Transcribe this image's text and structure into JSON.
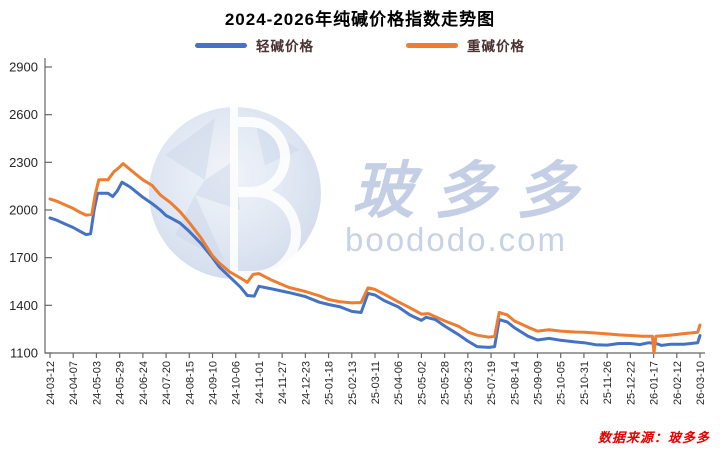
{
  "chart_data": {
    "type": "line",
    "title": "2024-2026年纯碱价格指数走势图",
    "xlabel": "",
    "ylabel": "",
    "ylim": [
      1100,
      2900
    ],
    "y_ticks": [
      1100,
      1400,
      1700,
      2000,
      2300,
      2600,
      2900
    ],
    "grid": false,
    "legend_position": "top",
    "x_tick_labels": [
      "24-03-12",
      "24-04-07",
      "24-05-03",
      "24-05-29",
      "24-06-24",
      "24-07-20",
      "24-08-15",
      "24-09-10",
      "24-10-06",
      "24-11-01",
      "24-11-27",
      "24-12-23",
      "25-01-18",
      "25-02-13",
      "25-03-11",
      "25-04-06",
      "25-05-02",
      "25-05-28",
      "25-06-23",
      "25-07-19",
      "25-08-14",
      "25-09-09",
      "25-10-05",
      "25-10-31",
      "25-11-26",
      "25-12-22",
      "26-01-17",
      "26-02-12",
      "26-03-10"
    ],
    "series": [
      {
        "name": "轻碱价格",
        "color": "#4472C4",
        "points": [
          [
            0,
            1950
          ],
          [
            0.3,
            1935
          ],
          [
            0.6,
            1915
          ],
          [
            1,
            1890
          ],
          [
            1.3,
            1865
          ],
          [
            1.55,
            1845
          ],
          [
            1.75,
            1850
          ],
          [
            1.9,
            2000
          ],
          [
            2.05,
            2105
          ],
          [
            2.5,
            2105
          ],
          [
            2.7,
            2085
          ],
          [
            2.9,
            2120
          ],
          [
            3.1,
            2175
          ],
          [
            3.45,
            2145
          ],
          [
            3.7,
            2115
          ],
          [
            4,
            2080
          ],
          [
            4.4,
            2040
          ],
          [
            4.75,
            2000
          ],
          [
            5,
            1965
          ],
          [
            5.2,
            1950
          ],
          [
            5.6,
            1918
          ],
          [
            6,
            1865
          ],
          [
            6.5,
            1790
          ],
          [
            7,
            1700
          ],
          [
            7.3,
            1640
          ],
          [
            7.75,
            1578
          ],
          [
            8.2,
            1515
          ],
          [
            8.5,
            1462
          ],
          [
            8.8,
            1458
          ],
          [
            9,
            1520
          ],
          [
            9.5,
            1505
          ],
          [
            10.3,
            1480
          ],
          [
            11,
            1455
          ],
          [
            11.6,
            1420
          ],
          [
            12,
            1405
          ],
          [
            12.5,
            1390
          ],
          [
            13,
            1362
          ],
          [
            13.4,
            1355
          ],
          [
            13.7,
            1475
          ],
          [
            14,
            1465
          ],
          [
            14.4,
            1430
          ],
          [
            15,
            1390
          ],
          [
            15.5,
            1340
          ],
          [
            16,
            1305
          ],
          [
            16.2,
            1325
          ],
          [
            16.6,
            1310
          ],
          [
            17,
            1270
          ],
          [
            17.6,
            1215
          ],
          [
            18,
            1175
          ],
          [
            18.4,
            1140
          ],
          [
            18.9,
            1135
          ],
          [
            19.15,
            1140
          ],
          [
            19.35,
            1310
          ],
          [
            19.7,
            1295
          ],
          [
            20,
            1260
          ],
          [
            20.6,
            1205
          ],
          [
            21,
            1182
          ],
          [
            21.5,
            1192
          ],
          [
            22,
            1180
          ],
          [
            22.6,
            1170
          ],
          [
            23,
            1165
          ],
          [
            23.5,
            1152
          ],
          [
            24,
            1150
          ],
          [
            24.5,
            1160
          ],
          [
            25,
            1160
          ],
          [
            25.4,
            1153
          ],
          [
            25.8,
            1165
          ],
          [
            26.1,
            1160
          ],
          [
            26.35,
            1148
          ],
          [
            26.7,
            1155
          ],
          [
            27.3,
            1155
          ],
          [
            27.9,
            1165
          ],
          [
            28,
            1210
          ]
        ]
      },
      {
        "name": "重碱价格",
        "color": "#ED7D31",
        "points": [
          [
            0,
            2070
          ],
          [
            0.3,
            2055
          ],
          [
            0.6,
            2035
          ],
          [
            1,
            2010
          ],
          [
            1.3,
            1985
          ],
          [
            1.55,
            1968
          ],
          [
            1.8,
            1972
          ],
          [
            1.95,
            2100
          ],
          [
            2.1,
            2190
          ],
          [
            2.5,
            2190
          ],
          [
            2.75,
            2240
          ],
          [
            3,
            2270
          ],
          [
            3.15,
            2292
          ],
          [
            3.45,
            2255
          ],
          [
            3.7,
            2225
          ],
          [
            4,
            2190
          ],
          [
            4.4,
            2155
          ],
          [
            4.75,
            2095
          ],
          [
            5.2,
            2045
          ],
          [
            5.6,
            1990
          ],
          [
            6,
            1920
          ],
          [
            6.5,
            1825
          ],
          [
            7,
            1712
          ],
          [
            7.3,
            1665
          ],
          [
            7.75,
            1610
          ],
          [
            8.2,
            1572
          ],
          [
            8.5,
            1545
          ],
          [
            8.75,
            1595
          ],
          [
            9,
            1600
          ],
          [
            9.5,
            1562
          ],
          [
            10.3,
            1512
          ],
          [
            11,
            1487
          ],
          [
            11.6,
            1460
          ],
          [
            12,
            1437
          ],
          [
            12.5,
            1422
          ],
          [
            13,
            1415
          ],
          [
            13.4,
            1418
          ],
          [
            13.7,
            1510
          ],
          [
            14,
            1500
          ],
          [
            14.4,
            1470
          ],
          [
            15,
            1422
          ],
          [
            15.5,
            1385
          ],
          [
            16,
            1345
          ],
          [
            16.3,
            1348
          ],
          [
            17,
            1302
          ],
          [
            17.6,
            1268
          ],
          [
            18,
            1232
          ],
          [
            18.4,
            1212
          ],
          [
            18.9,
            1200
          ],
          [
            19.15,
            1205
          ],
          [
            19.35,
            1355
          ],
          [
            19.7,
            1340
          ],
          [
            20,
            1302
          ],
          [
            20.6,
            1262
          ],
          [
            21,
            1238
          ],
          [
            21.5,
            1246
          ],
          [
            22,
            1238
          ],
          [
            22.6,
            1232
          ],
          [
            23,
            1230
          ],
          [
            23.5,
            1226
          ],
          [
            24,
            1220
          ],
          [
            24.5,
            1214
          ],
          [
            25,
            1210
          ],
          [
            25.5,
            1206
          ],
          [
            25.95,
            1206
          ],
          [
            26.02,
            1100
          ],
          [
            26.1,
            1206
          ],
          [
            26.7,
            1212
          ],
          [
            27.3,
            1222
          ],
          [
            27.9,
            1230
          ],
          [
            28,
            1276
          ]
        ]
      }
    ]
  },
  "watermark": {
    "letter": "B",
    "brand": "玻多多",
    "domain": "boododo.com"
  },
  "source_note": "数据来源：玻多多",
  "colors": {
    "light_soda": "#4472C4",
    "heavy_soda": "#ED7D31",
    "axis": "#666666",
    "tick_text": "#262626",
    "watermark": "#b8c5e0",
    "source_note": "#e60000"
  }
}
